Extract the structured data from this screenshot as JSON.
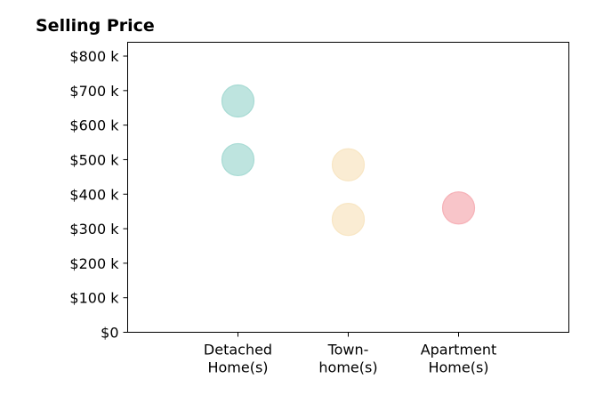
{
  "chart_data": {
    "type": "scatter",
    "title": "Selling Price",
    "xlabel": "",
    "ylabel": "",
    "categories": [
      [
        "Detached",
        "Home(s)"
      ],
      [
        "Town-",
        "home(s)"
      ],
      [
        "Apartment",
        "Home(s)"
      ]
    ],
    "ylim": [
      0,
      840000
    ],
    "yticks": [
      0,
      100000,
      200000,
      300000,
      400000,
      500000,
      600000,
      700000,
      800000
    ],
    "ytick_labels": [
      "$0",
      "$100 k",
      "$200 k",
      "$300 k",
      "$400 k",
      "$500 k",
      "$600 k",
      "$700 k",
      "$800 k"
    ],
    "grid": false,
    "points": [
      {
        "category": 0,
        "value": 670000,
        "color": "#a8dbd4"
      },
      {
        "category": 0,
        "value": 500000,
        "color": "#a8dbd4"
      },
      {
        "category": 1,
        "value": 485000,
        "color": "#f8e6c4"
      },
      {
        "category": 1,
        "value": 327000,
        "color": "#f8e6c4"
      },
      {
        "category": 2,
        "value": 360000,
        "color": "#f6b1b7"
      }
    ],
    "marker_opacity": 0.75
  }
}
